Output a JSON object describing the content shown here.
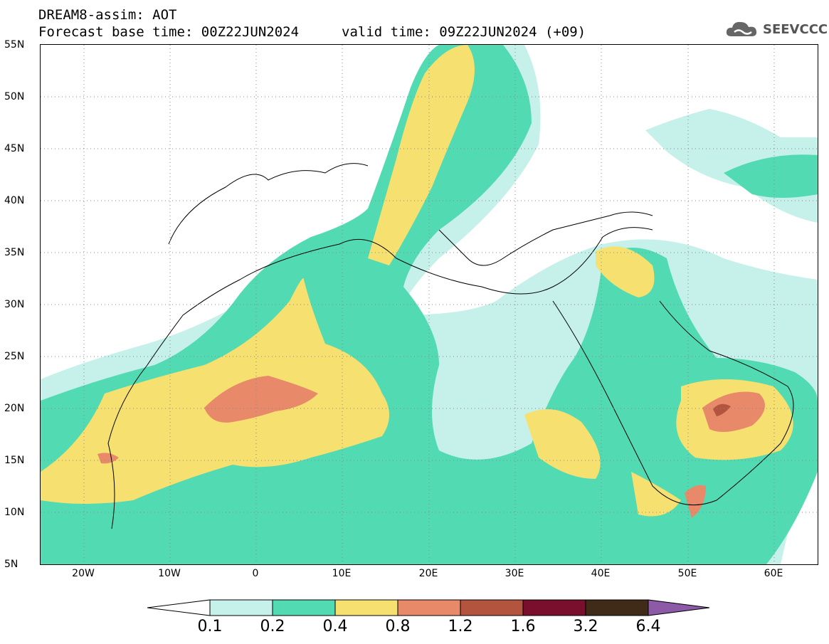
{
  "title": {
    "line1": "DREAM8-assim: AOT",
    "line2": "Forecast base time: 00Z22JUN2024",
    "valid": "valid time: 09Z22JUN2024 (+09)"
  },
  "logo": {
    "text": "SEEVCCC",
    "icon": "cloud-icon"
  },
  "map": {
    "lat_labels": [
      "55N",
      "50N",
      "45N",
      "40N",
      "35N",
      "30N",
      "25N",
      "20N",
      "15N",
      "10N",
      "5N"
    ],
    "lon_labels": [
      "20W",
      "10W",
      "0",
      "10E",
      "20E",
      "30E",
      "40E",
      "50E",
      "60E"
    ],
    "lat_range": [
      5,
      55
    ],
    "lon_range": [
      -25,
      65
    ],
    "grid": "dotted"
  },
  "colorbar": {
    "labels": [
      "0.1",
      "0.2",
      "0.4",
      "0.8",
      "1.2",
      "1.6",
      "3.2",
      "6.4"
    ],
    "colors": [
      "#ffffff",
      "#c6f0ea",
      "#52dbb2",
      "#f5e070",
      "#e8896a",
      "#b3543f",
      "#7a0f2d",
      "#402a18",
      "#8c5aa6"
    ]
  }
}
